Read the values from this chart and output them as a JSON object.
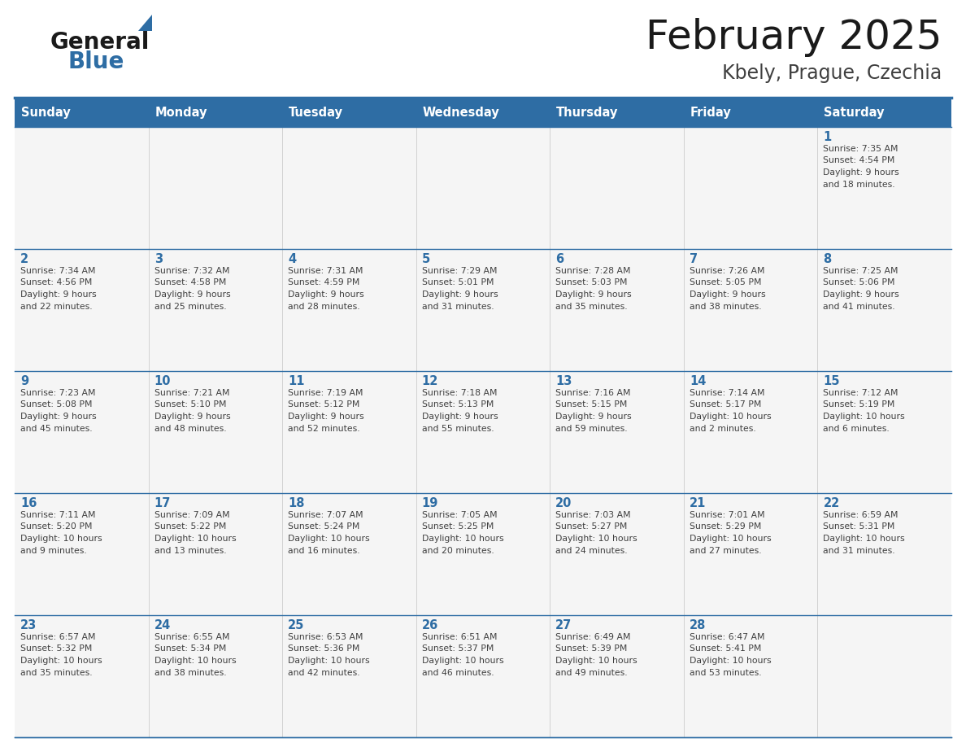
{
  "title": "February 2025",
  "subtitle": "Kbely, Prague, Czechia",
  "header_bg": "#2E6DA4",
  "header_text_color": "#FFFFFF",
  "cell_bg": "#F5F5F5",
  "day_number_color": "#2E6DA4",
  "info_text_color": "#404040",
  "border_color": "#2E6DA4",
  "grid_line_color": "#2E6DA4",
  "days_of_week": [
    "Sunday",
    "Monday",
    "Tuesday",
    "Wednesday",
    "Thursday",
    "Friday",
    "Saturday"
  ],
  "calendar_data": [
    [
      {
        "day": null,
        "info": ""
      },
      {
        "day": null,
        "info": ""
      },
      {
        "day": null,
        "info": ""
      },
      {
        "day": null,
        "info": ""
      },
      {
        "day": null,
        "info": ""
      },
      {
        "day": null,
        "info": ""
      },
      {
        "day": 1,
        "info": "Sunrise: 7:35 AM\nSunset: 4:54 PM\nDaylight: 9 hours\nand 18 minutes."
      }
    ],
    [
      {
        "day": 2,
        "info": "Sunrise: 7:34 AM\nSunset: 4:56 PM\nDaylight: 9 hours\nand 22 minutes."
      },
      {
        "day": 3,
        "info": "Sunrise: 7:32 AM\nSunset: 4:58 PM\nDaylight: 9 hours\nand 25 minutes."
      },
      {
        "day": 4,
        "info": "Sunrise: 7:31 AM\nSunset: 4:59 PM\nDaylight: 9 hours\nand 28 minutes."
      },
      {
        "day": 5,
        "info": "Sunrise: 7:29 AM\nSunset: 5:01 PM\nDaylight: 9 hours\nand 31 minutes."
      },
      {
        "day": 6,
        "info": "Sunrise: 7:28 AM\nSunset: 5:03 PM\nDaylight: 9 hours\nand 35 minutes."
      },
      {
        "day": 7,
        "info": "Sunrise: 7:26 AM\nSunset: 5:05 PM\nDaylight: 9 hours\nand 38 minutes."
      },
      {
        "day": 8,
        "info": "Sunrise: 7:25 AM\nSunset: 5:06 PM\nDaylight: 9 hours\nand 41 minutes."
      }
    ],
    [
      {
        "day": 9,
        "info": "Sunrise: 7:23 AM\nSunset: 5:08 PM\nDaylight: 9 hours\nand 45 minutes."
      },
      {
        "day": 10,
        "info": "Sunrise: 7:21 AM\nSunset: 5:10 PM\nDaylight: 9 hours\nand 48 minutes."
      },
      {
        "day": 11,
        "info": "Sunrise: 7:19 AM\nSunset: 5:12 PM\nDaylight: 9 hours\nand 52 minutes."
      },
      {
        "day": 12,
        "info": "Sunrise: 7:18 AM\nSunset: 5:13 PM\nDaylight: 9 hours\nand 55 minutes."
      },
      {
        "day": 13,
        "info": "Sunrise: 7:16 AM\nSunset: 5:15 PM\nDaylight: 9 hours\nand 59 minutes."
      },
      {
        "day": 14,
        "info": "Sunrise: 7:14 AM\nSunset: 5:17 PM\nDaylight: 10 hours\nand 2 minutes."
      },
      {
        "day": 15,
        "info": "Sunrise: 7:12 AM\nSunset: 5:19 PM\nDaylight: 10 hours\nand 6 minutes."
      }
    ],
    [
      {
        "day": 16,
        "info": "Sunrise: 7:11 AM\nSunset: 5:20 PM\nDaylight: 10 hours\nand 9 minutes."
      },
      {
        "day": 17,
        "info": "Sunrise: 7:09 AM\nSunset: 5:22 PM\nDaylight: 10 hours\nand 13 minutes."
      },
      {
        "day": 18,
        "info": "Sunrise: 7:07 AM\nSunset: 5:24 PM\nDaylight: 10 hours\nand 16 minutes."
      },
      {
        "day": 19,
        "info": "Sunrise: 7:05 AM\nSunset: 5:25 PM\nDaylight: 10 hours\nand 20 minutes."
      },
      {
        "day": 20,
        "info": "Sunrise: 7:03 AM\nSunset: 5:27 PM\nDaylight: 10 hours\nand 24 minutes."
      },
      {
        "day": 21,
        "info": "Sunrise: 7:01 AM\nSunset: 5:29 PM\nDaylight: 10 hours\nand 27 minutes."
      },
      {
        "day": 22,
        "info": "Sunrise: 6:59 AM\nSunset: 5:31 PM\nDaylight: 10 hours\nand 31 minutes."
      }
    ],
    [
      {
        "day": 23,
        "info": "Sunrise: 6:57 AM\nSunset: 5:32 PM\nDaylight: 10 hours\nand 35 minutes."
      },
      {
        "day": 24,
        "info": "Sunrise: 6:55 AM\nSunset: 5:34 PM\nDaylight: 10 hours\nand 38 minutes."
      },
      {
        "day": 25,
        "info": "Sunrise: 6:53 AM\nSunset: 5:36 PM\nDaylight: 10 hours\nand 42 minutes."
      },
      {
        "day": 26,
        "info": "Sunrise: 6:51 AM\nSunset: 5:37 PM\nDaylight: 10 hours\nand 46 minutes."
      },
      {
        "day": 27,
        "info": "Sunrise: 6:49 AM\nSunset: 5:39 PM\nDaylight: 10 hours\nand 49 minutes."
      },
      {
        "day": 28,
        "info": "Sunrise: 6:47 AM\nSunset: 5:41 PM\nDaylight: 10 hours\nand 53 minutes."
      },
      {
        "day": null,
        "info": ""
      }
    ]
  ],
  "logo_general_color": "#1a1a1a",
  "logo_blue_color": "#2E6DA4",
  "logo_triangle_color": "#2E6DA4"
}
